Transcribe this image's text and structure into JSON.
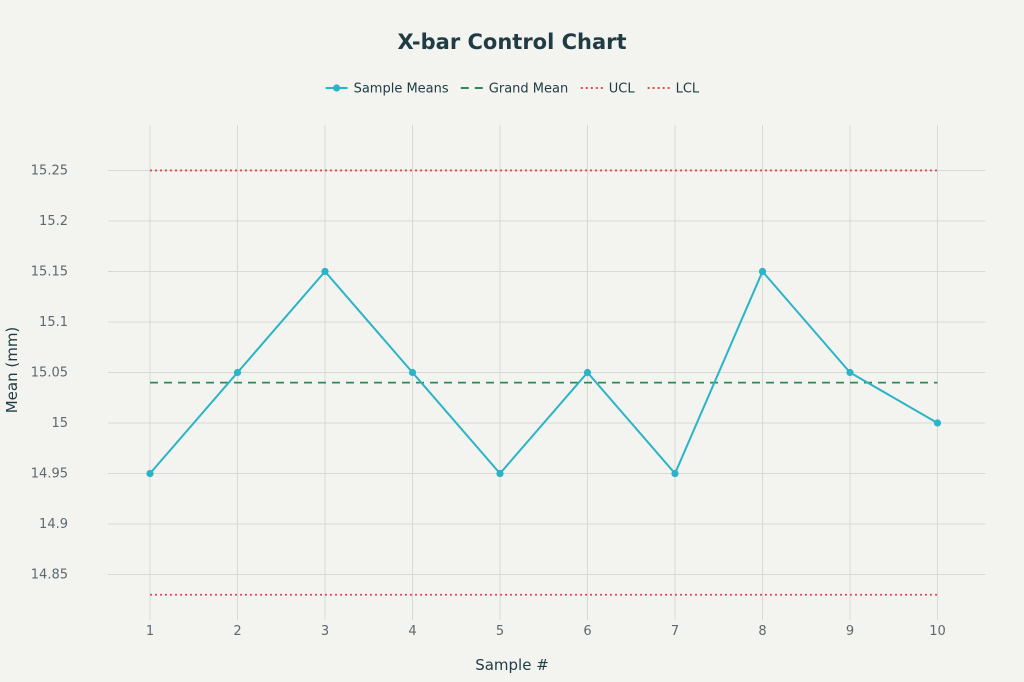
{
  "chart_data": {
    "type": "line",
    "title": "X-bar Control Chart",
    "xlabel": "Sample #",
    "ylabel": "Mean (mm)",
    "x": [
      1,
      2,
      3,
      4,
      5,
      6,
      7,
      8,
      9,
      10
    ],
    "xlim": [
      0.2,
      10.6
    ],
    "ylim": [
      14.805,
      15.295
    ],
    "x_ticks": [
      "1",
      "2",
      "3",
      "4",
      "5",
      "6",
      "7",
      "8",
      "9",
      "10"
    ],
    "y_ticks": [
      14.85,
      14.9,
      14.95,
      15,
      15.05,
      15.1,
      15.15,
      15.2,
      15.25
    ],
    "y_tick_labels": [
      "14.85",
      "14.9",
      "14.95",
      "15",
      "15.05",
      "15.1",
      "15.15",
      "15.2",
      "15.25"
    ],
    "grid": true,
    "legend_position": "top-center",
    "series": [
      {
        "name": "Sample Means",
        "style": "solid-markers",
        "color": "#2ab4c8",
        "values": [
          14.95,
          15.05,
          15.15,
          15.05,
          14.95,
          15.05,
          14.95,
          15.15,
          15.05,
          15.0
        ]
      },
      {
        "name": "Grand Mean",
        "style": "dashed",
        "color": "#2e8b57",
        "values": [
          15.04,
          15.04,
          15.04,
          15.04,
          15.04,
          15.04,
          15.04,
          15.04,
          15.04,
          15.04
        ]
      },
      {
        "name": "UCL",
        "style": "dotted",
        "color": "#e04b4b",
        "values": [
          15.25,
          15.25,
          15.25,
          15.25,
          15.25,
          15.25,
          15.25,
          15.25,
          15.25,
          15.25
        ]
      },
      {
        "name": "LCL",
        "style": "dotted",
        "color": "#e04b4b",
        "values": [
          14.83,
          14.83,
          14.83,
          14.83,
          14.83,
          14.83,
          14.83,
          14.83,
          14.83,
          14.83
        ]
      }
    ]
  }
}
